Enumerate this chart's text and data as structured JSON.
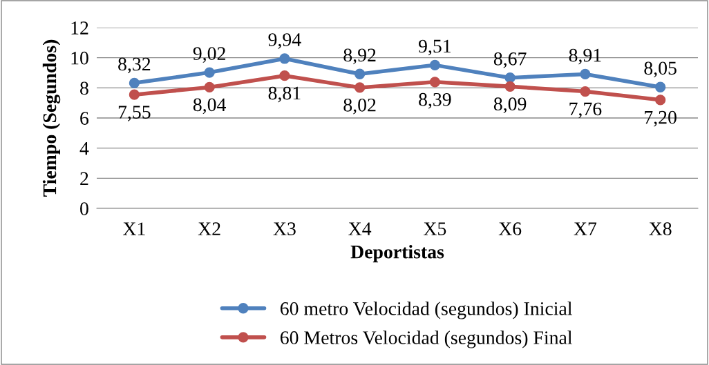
{
  "chart_data": {
    "type": "line",
    "xlabel": "Deportistas",
    "ylabel": "Tiempo (Segundos)",
    "categories": [
      "X1",
      "X2",
      "X3",
      "X4",
      "X5",
      "X6",
      "X7",
      "X8"
    ],
    "series": [
      {
        "name": "60 metro Velocidad (segundos) Inicial",
        "color": "#4f81bd",
        "values": [
          8.32,
          9.02,
          9.94,
          8.92,
          9.51,
          8.67,
          8.91,
          8.05
        ],
        "value_labels": [
          "8,32",
          "9,02",
          "9,94",
          "8,92",
          "9,51",
          "8,67",
          "8,91",
          "8,05"
        ]
      },
      {
        "name": "60 Metros Velocidad (segundos) Final",
        "color": "#c0504d",
        "values": [
          7.55,
          8.04,
          8.81,
          8.02,
          8.39,
          8.09,
          7.76,
          7.2
        ],
        "value_labels": [
          "7,55",
          "8,04",
          "8,81",
          "8,02",
          "8,39",
          "8,09",
          "7,76",
          "7,20"
        ]
      }
    ],
    "ylim": [
      0,
      12
    ],
    "yticks": [
      0,
      2,
      4,
      6,
      8,
      10,
      12
    ],
    "grid": "y",
    "legend": "bottom",
    "marker": "circle",
    "line_style": "solid"
  }
}
